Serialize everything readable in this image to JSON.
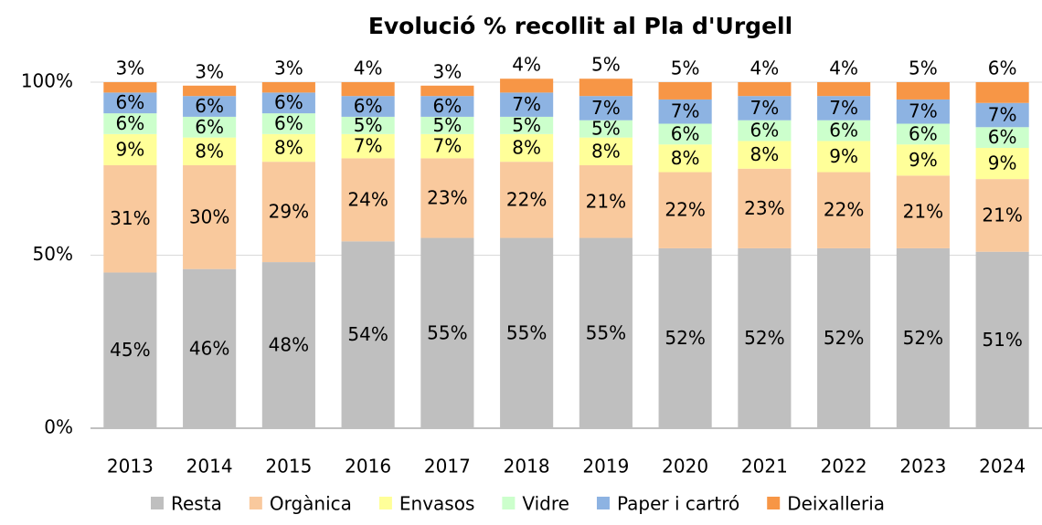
{
  "chart_data": {
    "type": "stacked_bar",
    "title": "Evolució % recollit al Pla d'Urgell",
    "categories": [
      "2013",
      "2014",
      "2015",
      "2016",
      "2017",
      "2018",
      "2019",
      "2020",
      "2021",
      "2022",
      "2023",
      "2024"
    ],
    "series": [
      {
        "name": "Resta",
        "color": "#bfbfbf",
        "values": [
          45,
          46,
          48,
          54,
          55,
          55,
          55,
          52,
          52,
          52,
          52,
          51
        ],
        "value_labels": [
          "45%",
          "46%",
          "48%",
          "54%",
          "55%",
          "55%",
          "55%",
          "52%",
          "52%",
          "52%",
          "52%",
          "51%"
        ]
      },
      {
        "name": "Orgànica",
        "color": "#f9c99d",
        "values": [
          31,
          30,
          29,
          24,
          23,
          22,
          21,
          22,
          23,
          22,
          21,
          21
        ],
        "value_labels": [
          "31%",
          "30%",
          "29%",
          "24%",
          "23%",
          "22%",
          "21%",
          "22%",
          "23%",
          "22%",
          "21%",
          "21%"
        ]
      },
      {
        "name": "Envasos",
        "color": "#ffff99",
        "values": [
          9,
          8,
          8,
          7,
          7,
          8,
          8,
          8,
          8,
          9,
          9,
          9
        ],
        "value_labels": [
          "9%",
          "8%",
          "8%",
          "7%",
          "7%",
          "8%",
          "8%",
          "8%",
          "8%",
          "9%",
          "9%",
          "9%"
        ]
      },
      {
        "name": "Vidre",
        "color": "#ccffcc",
        "values": [
          6,
          6,
          6,
          5,
          5,
          5,
          5,
          6,
          6,
          6,
          6,
          6
        ],
        "value_labels": [
          "6%",
          "6%",
          "6%",
          "5%",
          "5%",
          "5%",
          "5%",
          "6%",
          "6%",
          "6%",
          "6%",
          "6%"
        ]
      },
      {
        "name": "Paper i cartró",
        "color": "#8db3e2",
        "values": [
          6,
          6,
          6,
          6,
          6,
          7,
          7,
          7,
          7,
          7,
          7,
          7
        ],
        "value_labels": [
          "6%",
          "6%",
          "6%",
          "6%",
          "6%",
          "7%",
          "7%",
          "7%",
          "7%",
          "7%",
          "7%",
          "7%"
        ]
      },
      {
        "name": "Deixalleria",
        "color": "#f79646",
        "values": [
          3,
          3,
          3,
          4,
          3,
          4,
          5,
          5,
          4,
          4,
          5,
          6
        ],
        "value_labels": [
          "3%",
          "3%",
          "3%",
          "4%",
          "3%",
          "4%",
          "5%",
          "5%",
          "4%",
          "4%",
          "5%",
          "6%"
        ]
      }
    ],
    "ylim": [
      0,
      100
    ],
    "yticks": [
      {
        "value": 0,
        "label": "0%"
      },
      {
        "value": 50,
        "label": "50%"
      },
      {
        "value": 100,
        "label": "100%"
      }
    ],
    "grid": true,
    "legend": "bottom"
  }
}
